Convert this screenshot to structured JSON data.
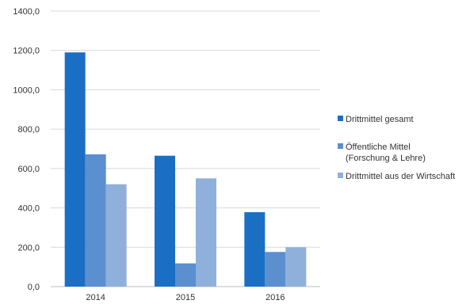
{
  "chart_data": {
    "type": "bar",
    "title": "",
    "xlabel": "",
    "ylabel": "",
    "categories": [
      "2014",
      "2015",
      "2016"
    ],
    "ylim": [
      0,
      1400
    ],
    "ytick_values": [
      0,
      200,
      400,
      600,
      800,
      1000,
      1200,
      1400
    ],
    "ytick_labels": [
      "0,0",
      "200,0",
      "400,0",
      "600,0",
      "800,0",
      "1000,0",
      "1200,0",
      "1400,0"
    ],
    "grid": true,
    "legend_position": "right",
    "series": [
      {
        "name": "Drittmittel gesamt",
        "values": [
          1190,
          665,
          378
        ],
        "color": "#1a6fc4"
      },
      {
        "name": "Öffentliche Mittel (Forschung & Lehre)",
        "legend_lines": [
          "Öffentliche Mittel",
          "(Forschung & Lehre)"
        ],
        "values": [
          672,
          118,
          176
        ],
        "color": "#5b8fd0"
      },
      {
        "name": "Drittmittel aus der Wirtschaft",
        "values": [
          520,
          550,
          200
        ],
        "color": "#8fb0da"
      }
    ]
  }
}
